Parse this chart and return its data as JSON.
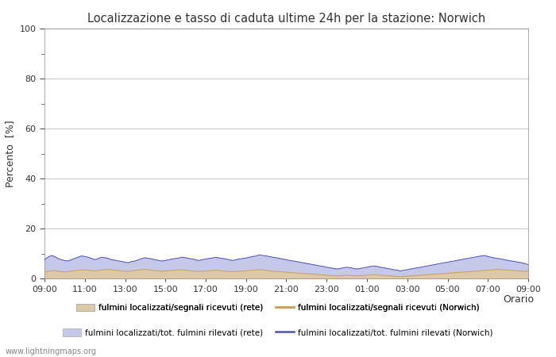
{
  "title": "Localizzazione e tasso di caduta ultime 24h per la stazione: Norwich",
  "ylabel": "Percento  [%]",
  "xlabel": "Orario",
  "ylim": [
    0,
    100
  ],
  "yticks_major": [
    0,
    20,
    40,
    60,
    80,
    100
  ],
  "yticks_minor": [
    10,
    30,
    50,
    70,
    90
  ],
  "x_labels": [
    "09:00",
    "11:00",
    "13:00",
    "15:00",
    "17:00",
    "19:00",
    "21:00",
    "23:00",
    "01:00",
    "03:00",
    "05:00",
    "07:00",
    "09:00"
  ],
  "n_points": 145,
  "watermark": "www.lightningmaps.org",
  "fill_rete_color": "#ddc9a8",
  "fill_norwich_color": "#c5c8e8",
  "line_rete_color": "#c8a050",
  "line_norwich_color": "#5050b8",
  "bg_color": "#ffffff",
  "grid_color": "#bbbbbb",
  "legend_labels": [
    "fulmini localizzati/segnali ricevuti (rete)",
    "fulmini localizzati/segnali ricevuti (Norwich)",
    "fulmini localizzati/tot. fulmini rilevati (rete)",
    "fulmini localizzati/tot. fulmini rilevati (Norwich)"
  ],
  "fill_rete": [
    2.5,
    2.8,
    3.0,
    3.2,
    2.9,
    2.7,
    2.6,
    2.8,
    3.0,
    3.1,
    3.3,
    3.5,
    3.4,
    3.3,
    3.2,
    3.0,
    3.2,
    3.4,
    3.5,
    3.6,
    3.5,
    3.3,
    3.2,
    3.0,
    2.9,
    2.8,
    3.0,
    3.2,
    3.4,
    3.5,
    3.6,
    3.5,
    3.3,
    3.1,
    3.0,
    2.9,
    3.0,
    3.1,
    3.2,
    3.3,
    3.4,
    3.5,
    3.3,
    3.1,
    3.0,
    2.9,
    2.8,
    2.9,
    3.0,
    3.1,
    3.2,
    3.3,
    3.2,
    3.0,
    2.9,
    2.8,
    2.7,
    2.8,
    2.9,
    3.0,
    3.1,
    3.2,
    3.3,
    3.4,
    3.5,
    3.4,
    3.2,
    3.0,
    2.9,
    2.8,
    2.7,
    2.6,
    2.5,
    2.4,
    2.3,
    2.2,
    2.1,
    2.0,
    1.9,
    1.8,
    1.7,
    1.6,
    1.5,
    1.4,
    1.3,
    1.2,
    1.1,
    1.0,
    1.1,
    1.2,
    1.3,
    1.2,
    1.1,
    1.0,
    1.1,
    1.2,
    1.3,
    1.4,
    1.5,
    1.4,
    1.3,
    1.2,
    1.1,
    1.0,
    0.9,
    0.8,
    0.7,
    0.8,
    0.9,
    1.0,
    1.1,
    1.2,
    1.3,
    1.4,
    1.5,
    1.6,
    1.7,
    1.8,
    1.9,
    2.0,
    2.1,
    2.2,
    2.3,
    2.4,
    2.5,
    2.6,
    2.7,
    2.8,
    2.9,
    3.0,
    3.1,
    3.2,
    3.3,
    3.4,
    3.5,
    3.6,
    3.5,
    3.4,
    3.3,
    3.2,
    3.1,
    3.0,
    2.9,
    2.8,
    3.2
  ],
  "fill_norwich": [
    7.5,
    8.5,
    9.2,
    8.8,
    8.0,
    7.5,
    7.2,
    7.0,
    7.5,
    8.0,
    8.5,
    9.0,
    8.8,
    8.5,
    8.0,
    7.5,
    8.0,
    8.5,
    8.3,
    8.0,
    7.5,
    7.3,
    7.0,
    6.8,
    6.5,
    6.3,
    6.8,
    7.0,
    7.5,
    8.0,
    8.3,
    8.0,
    7.8,
    7.5,
    7.2,
    7.0,
    7.2,
    7.5,
    7.8,
    8.0,
    8.2,
    8.5,
    8.3,
    8.0,
    7.8,
    7.5,
    7.2,
    7.5,
    7.8,
    8.0,
    8.2,
    8.5,
    8.2,
    8.0,
    7.8,
    7.5,
    7.2,
    7.5,
    7.8,
    8.0,
    8.2,
    8.5,
    8.8,
    9.0,
    9.5,
    9.2,
    9.0,
    8.8,
    8.5,
    8.3,
    8.0,
    7.8,
    7.5,
    7.2,
    7.0,
    6.8,
    6.5,
    6.3,
    6.0,
    5.8,
    5.5,
    5.3,
    5.0,
    4.8,
    4.5,
    4.3,
    4.0,
    3.8,
    4.0,
    4.3,
    4.5,
    4.3,
    4.0,
    3.8,
    4.0,
    4.3,
    4.5,
    4.8,
    5.0,
    4.8,
    4.5,
    4.3,
    4.0,
    3.8,
    3.5,
    3.3,
    3.0,
    3.3,
    3.5,
    3.8,
    4.0,
    4.3,
    4.5,
    4.8,
    5.0,
    5.3,
    5.5,
    5.8,
    6.0,
    6.3,
    6.5,
    6.8,
    7.0,
    7.3,
    7.5,
    7.8,
    8.0,
    8.3,
    8.5,
    8.8,
    9.0,
    9.2,
    8.8,
    8.5,
    8.2,
    8.0,
    7.8,
    7.5,
    7.2,
    7.0,
    6.8,
    6.5,
    6.3,
    6.0,
    5.5
  ]
}
